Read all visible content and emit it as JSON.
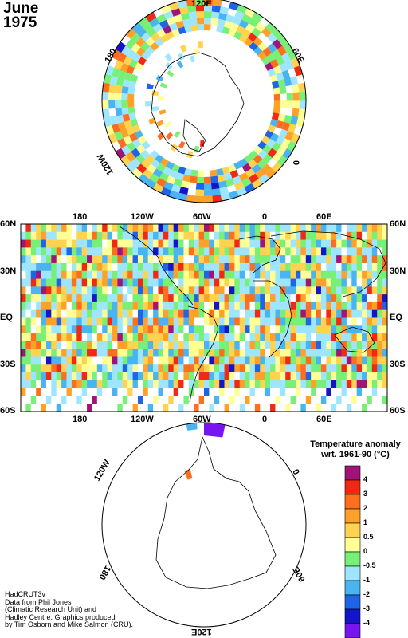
{
  "title": {
    "month": "June",
    "year": "1975"
  },
  "palette": {
    "4": "#a0147a",
    "3": "#f02814",
    "2": "#ff6e1e",
    "1": "#ffa028",
    "0.5": "#ffd250",
    "0": "#ffff96",
    "-0.5": "#78f078",
    "-1": "#9ee6ff",
    "-2": "#4ab4f0",
    "-3": "#1e64e6",
    "-4": "#1414c8",
    "-5": "#7814f0",
    "missing": "#ffffff"
  },
  "north_polar": {
    "lon_labels": [
      "120E",
      "60E",
      "0",
      "120W",
      "180"
    ]
  },
  "world_map": {
    "top_lon_labels": [
      "180",
      "120W",
      "60W",
      "0",
      "60E"
    ],
    "bottom_lon_labels": [
      "180",
      "120W",
      "60W",
      "0",
      "60E"
    ],
    "left_lat_labels": [
      "60N",
      "30N",
      "EQ",
      "30S",
      "60S"
    ],
    "right_lat_labels": [
      "60N",
      "30N",
      "EQ",
      "30S",
      "60S"
    ]
  },
  "south_polar": {
    "lon_labels": [
      "120W",
      "0",
      "180",
      "60E",
      "120E"
    ]
  },
  "legend": {
    "title_line1": "Temperature anomaly",
    "title_line2": "wrt. 1961-90  (°C)",
    "labels": [
      "4",
      "3",
      "2",
      "1",
      "0.5",
      "0",
      "-0.5",
      "-1",
      "-2",
      "-3",
      "-4"
    ]
  },
  "credit": {
    "lines": [
      "HadCRUT3v",
      "Data from Phil Jones",
      "(Climatic Research Unit) and",
      "Hadley Centre.  Graphics produced",
      "by Tim Osborn and Mike Salmon (CRU)."
    ]
  }
}
